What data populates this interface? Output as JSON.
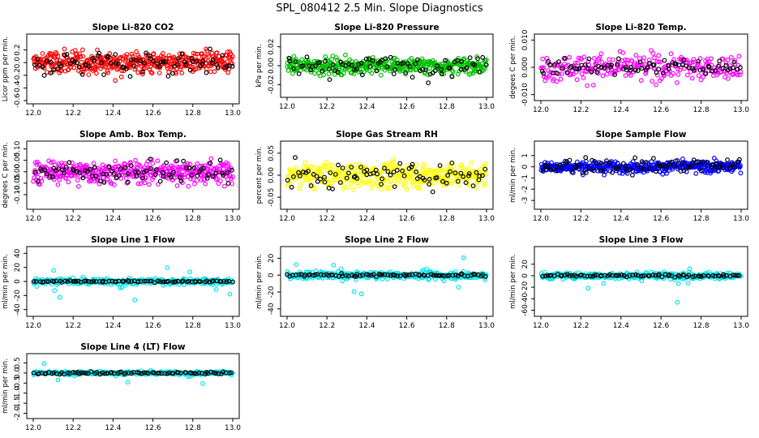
{
  "figure": {
    "title": "SPL_080412  2.5 Min. Slope Diagnostics"
  },
  "chart_data": [
    {
      "type": "scatter",
      "title": "Slope Li-820 CO2",
      "ylabel": "Licor ppm per min.",
      "xlim": [
        12.0,
        13.0
      ],
      "ylim": [
        -0.6,
        0.4
      ],
      "xticks": [
        "12.0",
        "12.2",
        "12.4",
        "12.6",
        "12.8",
        "13.0"
      ],
      "yticks": [
        -0.6,
        -0.4,
        -0.2,
        0.0,
        0.2
      ],
      "ytick_labels": [
        "-0.6",
        "-0.4",
        "-0.2",
        "0.0",
        "0.2"
      ],
      "series": [
        {
          "color": "#ff0000",
          "count": 400,
          "spread": 0.13,
          "center": 0.0
        },
        {
          "color": "#000000",
          "count": 80,
          "spread": 0.14,
          "center": 0.0
        }
      ],
      "grid": false,
      "legend": "none"
    },
    {
      "type": "scatter",
      "title": "Slope Li-820 Pressure",
      "ylabel": "kPa per min.",
      "xlim": [
        12.0,
        13.0
      ],
      "ylim": [
        -0.03,
        0.03
      ],
      "xticks": [
        "12.0",
        "12.2",
        "12.4",
        "12.6",
        "12.8",
        "13.0"
      ],
      "yticks": [
        -0.02,
        0.0,
        0.02
      ],
      "ytick_labels": [
        "-0.02",
        "0.00",
        "0.02"
      ],
      "series": [
        {
          "color": "#00c000",
          "count": 400,
          "spread": 0.006,
          "center": 0.0
        },
        {
          "color": "#000000",
          "count": 80,
          "spread": 0.008,
          "center": 0.0
        }
      ],
      "grid": false,
      "legend": "none"
    },
    {
      "type": "scatter",
      "title": "Slope Li-820 Temp.",
      "ylabel": "degees C per min.",
      "xlim": [
        12.0,
        13.0
      ],
      "ylim": [
        -0.011,
        0.011
      ],
      "xticks": [
        "12.0",
        "12.2",
        "12.4",
        "12.6",
        "12.8",
        "13.0"
      ],
      "yticks": [
        -0.01,
        0.0,
        0.01
      ],
      "ytick_labels": [
        "-0.010",
        "0.000",
        "0.010"
      ],
      "series": [
        {
          "color": "#ff00ff",
          "count": 260,
          "spread": 0.0035,
          "center": 0.0
        },
        {
          "color": "#000000",
          "count": 80,
          "spread": 0.002,
          "center": 0.0
        }
      ],
      "grid": false,
      "legend": "none"
    },
    {
      "type": "scatter",
      "title": "Slope Amb. Box Temp.",
      "ylabel": "degrees C per min.",
      "xlim": [
        12.0,
        13.0
      ],
      "ylim": [
        -0.15,
        0.12
      ],
      "xticks": [
        "12.0",
        "12.2",
        "12.4",
        "12.6",
        "12.8",
        "13.0"
      ],
      "yticks": [
        -0.1,
        -0.05,
        0.0,
        0.05,
        0.1
      ],
      "ytick_labels": [
        "-0.10",
        "-0.05",
        "0.00",
        "0.05",
        "0.10"
      ],
      "series": [
        {
          "color": "#ff00ff",
          "count": 400,
          "spread": 0.035,
          "center": 0.0
        },
        {
          "color": "#000000",
          "count": 80,
          "spread": 0.03,
          "center": 0.0
        }
      ],
      "grid": false,
      "legend": "none"
    },
    {
      "type": "scatter",
      "title": "Slope Gas Stream RH",
      "ylabel": "percent per min.",
      "xlim": [
        12.0,
        13.0
      ],
      "ylim": [
        -0.07,
        0.07
      ],
      "xticks": [
        "12.0",
        "12.2",
        "12.4",
        "12.6",
        "12.8",
        "13.0"
      ],
      "yticks": [
        -0.05,
        0.0,
        0.05
      ],
      "ytick_labels": [
        "-0.05",
        "0.00",
        "0.05"
      ],
      "series": [
        {
          "color": "#ffff00",
          "count": 400,
          "spread": 0.02,
          "center": 0.0
        },
        {
          "color": "#000000",
          "count": 80,
          "spread": 0.02,
          "center": 0.0
        }
      ],
      "grid": false,
      "legend": "none"
    },
    {
      "type": "scatter",
      "title": "Slope Sample Flow",
      "ylabel": "ml/min per min.",
      "xlim": [
        12.0,
        13.0
      ],
      "ylim": [
        -3.5,
        2.0
      ],
      "xticks": [
        "12.0",
        "12.2",
        "12.4",
        "12.6",
        "12.8",
        "13.0"
      ],
      "yticks": [
        -3,
        -2,
        -1,
        0,
        1
      ],
      "ytick_labels": [
        "-3",
        "-2",
        "-1",
        "0",
        "1"
      ],
      "series": [
        {
          "color": "#0000ff",
          "count": 420,
          "spread": 0.35,
          "center": 0.0
        },
        {
          "color": "#000000",
          "count": 80,
          "spread": 0.5,
          "center": 0.1
        }
      ],
      "grid": false,
      "legend": "none"
    },
    {
      "type": "scatter",
      "title": "Slope Line 1 Flow",
      "ylabel": "ml/min per min.",
      "xlim": [
        12.0,
        13.0
      ],
      "ylim": [
        -45,
        45
      ],
      "xticks": [
        "12.0",
        "12.2",
        "12.4",
        "12.6",
        "12.8",
        "13.0"
      ],
      "yticks": [
        -40,
        -20,
        0,
        20,
        40
      ],
      "ytick_labels": [
        "-40",
        "-20",
        "0",
        "20",
        "40"
      ],
      "series": [
        {
          "color": "#00e5ee",
          "count": 320,
          "spread": 3.0,
          "center": 0.0
        },
        {
          "color": "#000000",
          "count": 80,
          "spread": 0.8,
          "center": 0.0
        }
      ],
      "grid": false,
      "legend": "none"
    },
    {
      "type": "scatter",
      "title": "Slope Line 2 Flow",
      "ylabel": "ml/min per min.",
      "xlim": [
        12.0,
        13.0
      ],
      "ylim": [
        -45,
        30
      ],
      "xticks": [
        "12.0",
        "12.2",
        "12.4",
        "12.6",
        "12.8",
        "13.0"
      ],
      "yticks": [
        -40,
        -20,
        0,
        20
      ],
      "ytick_labels": [
        "-40",
        "-20",
        "0",
        "20"
      ],
      "series": [
        {
          "color": "#00e5ee",
          "count": 320,
          "spread": 3.0,
          "center": 0.0
        },
        {
          "color": "#000000",
          "count": 80,
          "spread": 1.2,
          "center": 0.0
        }
      ],
      "grid": false,
      "legend": "none"
    },
    {
      "type": "scatter",
      "title": "Slope Line 3 Flow",
      "ylabel": "ml/min per min.",
      "xlim": [
        12.0,
        13.0
      ],
      "ylim": [
        -65,
        45
      ],
      "xticks": [
        "12.0",
        "12.2",
        "12.4",
        "12.6",
        "12.8",
        "13.0"
      ],
      "yticks": [
        -60,
        -40,
        -20,
        0,
        20
      ],
      "ytick_labels": [
        "-60",
        "-40",
        "-20",
        "0",
        "20"
      ],
      "series": [
        {
          "color": "#00e5ee",
          "count": 320,
          "spread": 4.0,
          "center": 0.0
        },
        {
          "color": "#000000",
          "count": 80,
          "spread": 1.5,
          "center": 0.0
        }
      ],
      "grid": false,
      "legend": "none"
    },
    {
      "type": "scatter",
      "title": "Slope Line 4 (LT) Flow",
      "ylabel": "ml/min per min.",
      "xlim": [
        12.0,
        13.0
      ],
      "ylim": [
        -2.1,
        0.8
      ],
      "xticks": [
        "12.0",
        "12.2",
        "12.4",
        "12.6",
        "12.8",
        "13.0"
      ],
      "yticks": [
        -2.0,
        -1.5,
        -1.0,
        -0.5,
        0.0,
        0.5
      ],
      "ytick_labels": [
        "-2.0",
        "-1.5",
        "-1.0",
        "-0.5",
        "0.0",
        "0.5"
      ],
      "series": [
        {
          "color": "#00e5ee",
          "count": 320,
          "spread": 0.06,
          "center": 0.0
        },
        {
          "color": "#000000",
          "count": 80,
          "spread": 0.04,
          "center": 0.0
        }
      ],
      "grid": false,
      "legend": "none"
    }
  ]
}
